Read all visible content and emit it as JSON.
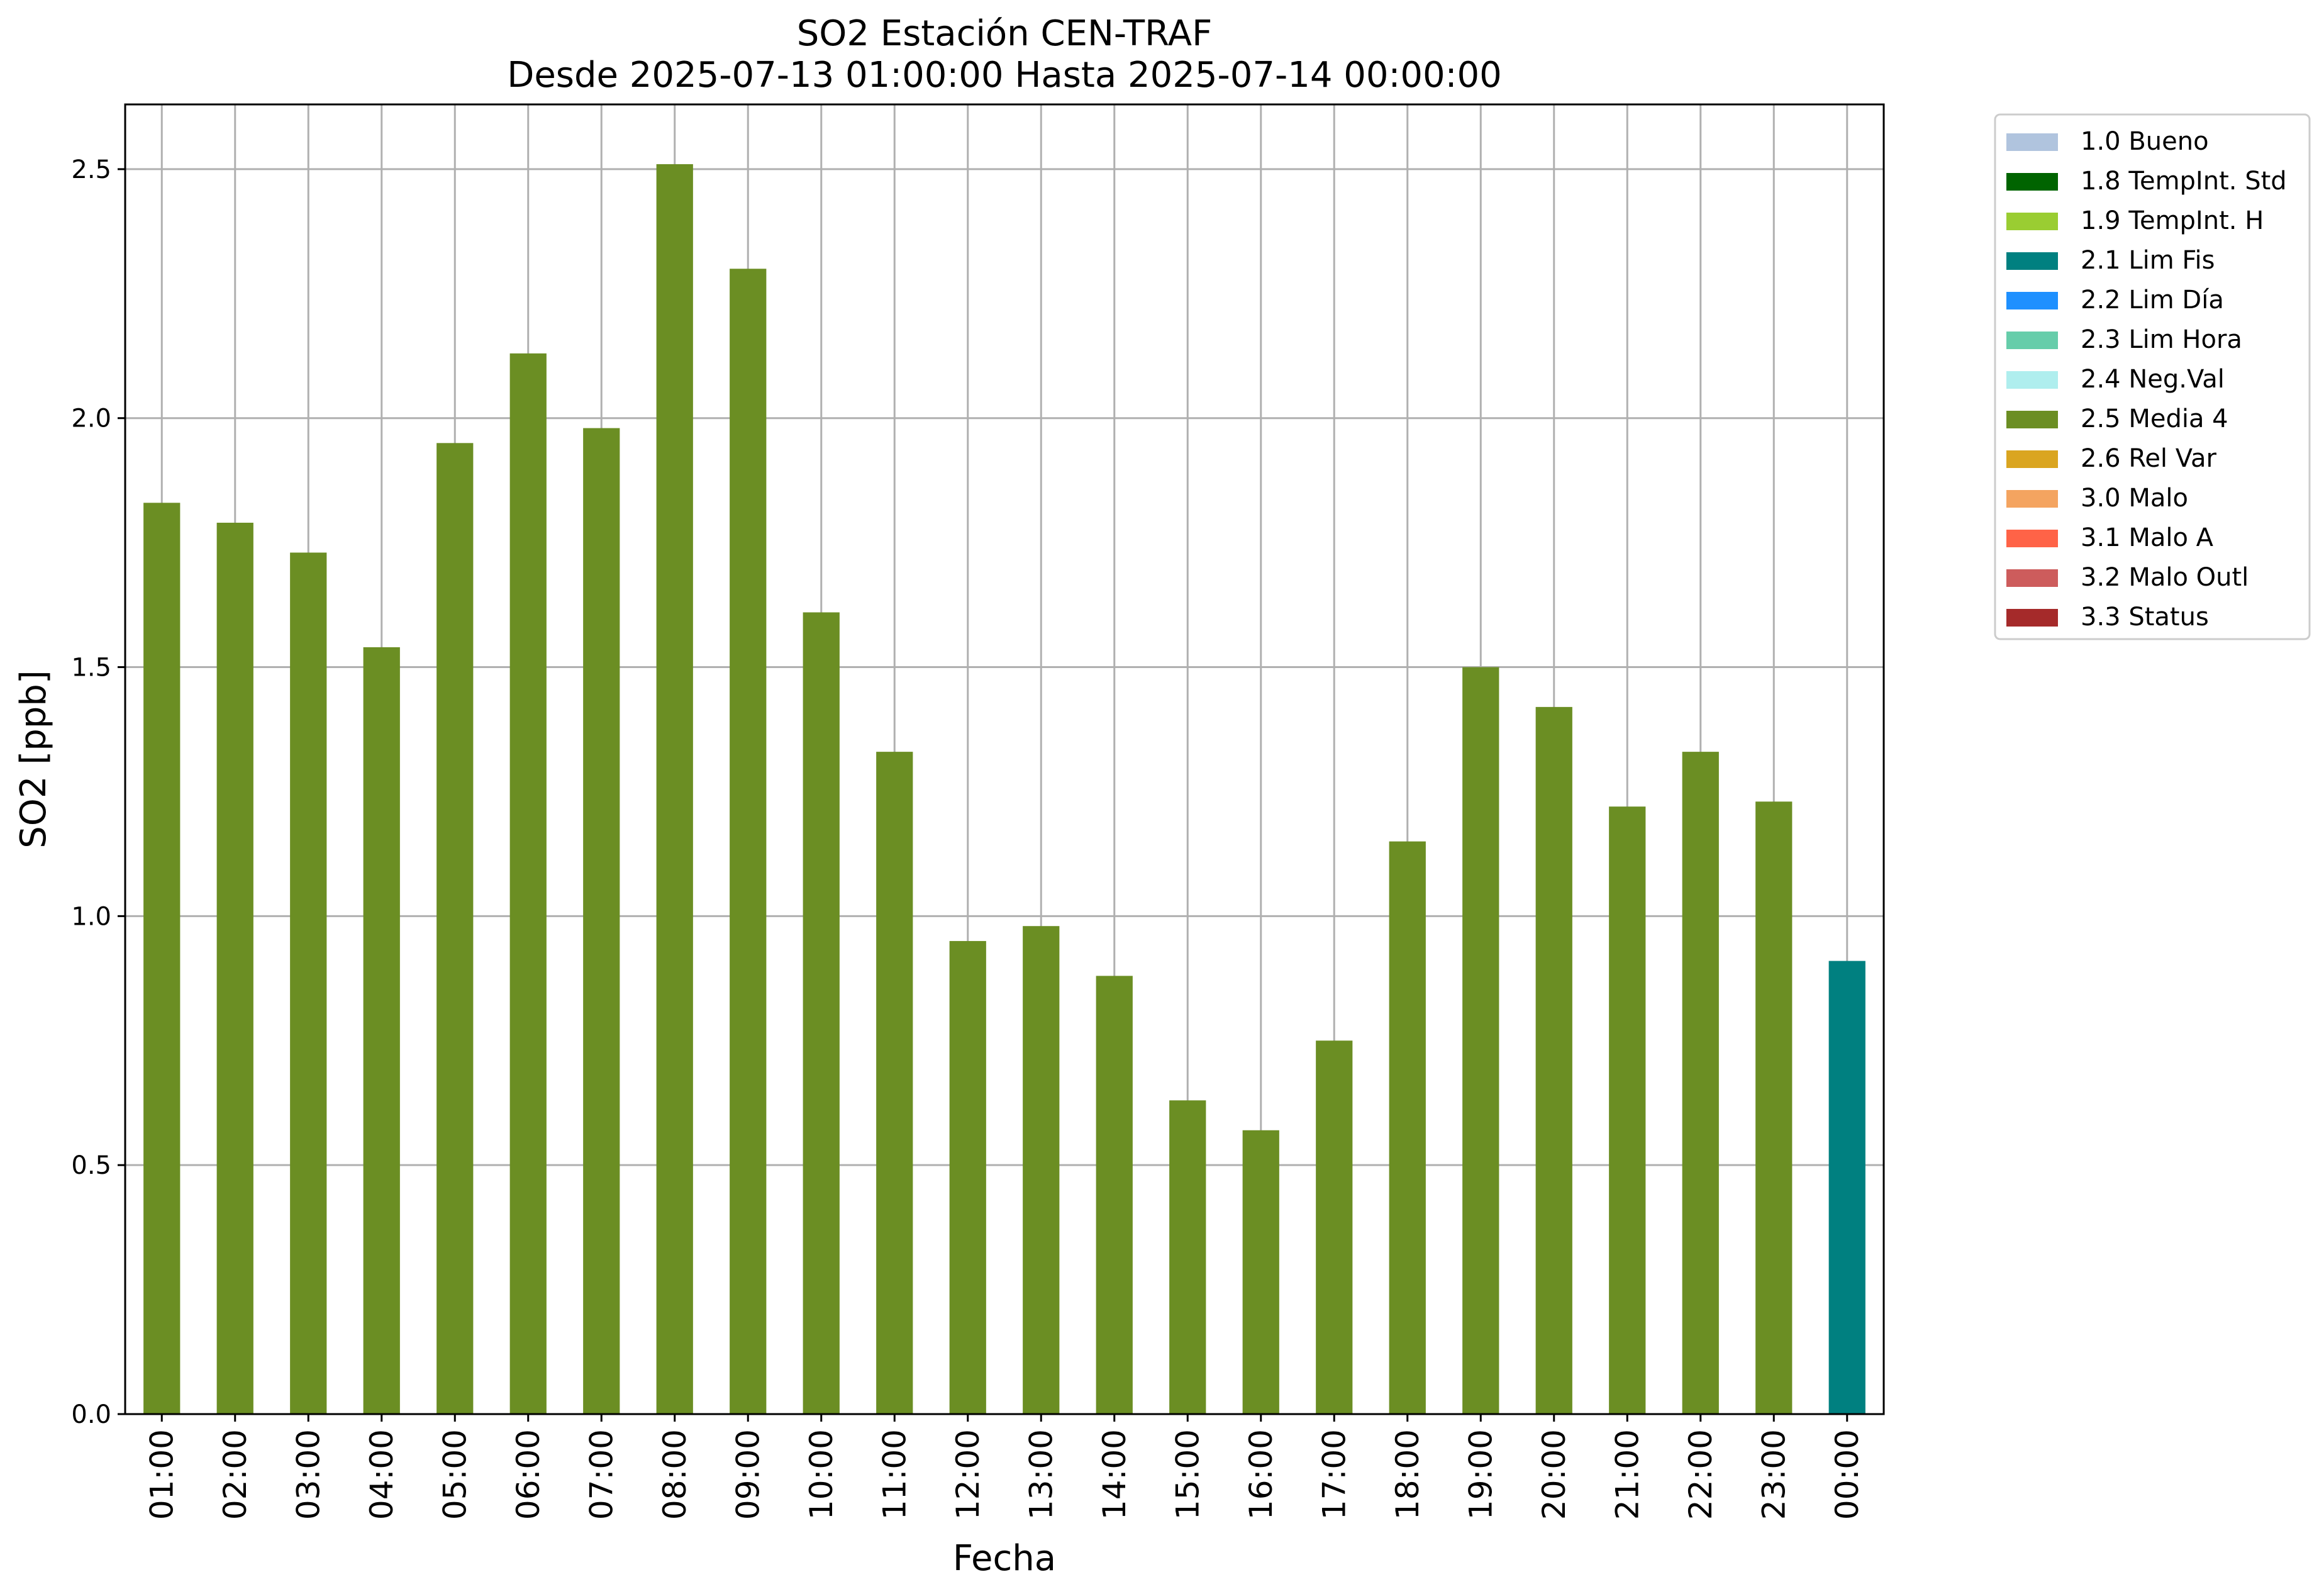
{
  "chart_data": {
    "type": "bar",
    "title": "SO2 Estación CEN-TRAF",
    "subtitle": "Desde 2025-07-13 01:00:00 Hasta 2025-07-14 00:00:00",
    "xlabel": "Fecha",
    "ylabel": "SO2 [ppb]",
    "ylim": [
      0,
      2.63
    ],
    "yticks": [
      "0.0",
      "0.5",
      "1.0",
      "1.5",
      "2.0",
      "2.5"
    ],
    "grid": true,
    "legend_position": "outside-top-right",
    "categories": [
      "01:00",
      "02:00",
      "03:00",
      "04:00",
      "05:00",
      "06:00",
      "07:00",
      "08:00",
      "09:00",
      "10:00",
      "11:00",
      "12:00",
      "13:00",
      "14:00",
      "15:00",
      "16:00",
      "17:00",
      "18:00",
      "19:00",
      "20:00",
      "21:00",
      "22:00",
      "23:00",
      "00:00"
    ],
    "values": [
      1.83,
      1.79,
      1.73,
      1.54,
      1.95,
      2.13,
      1.98,
      2.51,
      2.3,
      1.61,
      1.33,
      0.95,
      0.98,
      0.88,
      0.63,
      0.57,
      0.75,
      1.15,
      1.5,
      1.42,
      1.22,
      1.33,
      1.23,
      0.91
    ],
    "flags": [
      "2.5 Media 4",
      "2.5 Media 4",
      "2.5 Media 4",
      "2.5 Media 4",
      "2.5 Media 4",
      "2.5 Media 4",
      "2.5 Media 4",
      "2.5 Media 4",
      "2.5 Media 4",
      "2.5 Media 4",
      "2.5 Media 4",
      "2.5 Media 4",
      "2.5 Media 4",
      "2.5 Media 4",
      "2.5 Media 4",
      "2.5 Media 4",
      "2.5 Media 4",
      "2.5 Media 4",
      "2.5 Media 4",
      "2.5 Media 4",
      "2.5 Media 4",
      "2.5 Media 4",
      "2.5 Media 4",
      "2.1 Lim Fis"
    ],
    "legend": [
      {
        "label": "1.0 Bueno",
        "color": "#b0c4de"
      },
      {
        "label": "1.8 TempInt. Std",
        "color": "#006400"
      },
      {
        "label": "1.9 TempInt. H",
        "color": "#9acd32"
      },
      {
        "label": "2.1 Lim Fis",
        "color": "#008080"
      },
      {
        "label": "2.2 Lim Día",
        "color": "#1e90ff"
      },
      {
        "label": "2.3 Lim Hora",
        "color": "#66cdaa"
      },
      {
        "label": "2.4 Neg.Val",
        "color": "#afeeee"
      },
      {
        "label": "2.5 Media 4",
        "color": "#6b8e23"
      },
      {
        "label": "2.6 Rel Var",
        "color": "#daa520"
      },
      {
        "label": "3.0 Malo",
        "color": "#f4a460"
      },
      {
        "label": "3.1 Malo A",
        "color": "#ff6347"
      },
      {
        "label": "3.2 Malo Outl",
        "color": "#cd5c5c"
      },
      {
        "label": "3.3 Status",
        "color": "#a52a2a"
      }
    ]
  }
}
